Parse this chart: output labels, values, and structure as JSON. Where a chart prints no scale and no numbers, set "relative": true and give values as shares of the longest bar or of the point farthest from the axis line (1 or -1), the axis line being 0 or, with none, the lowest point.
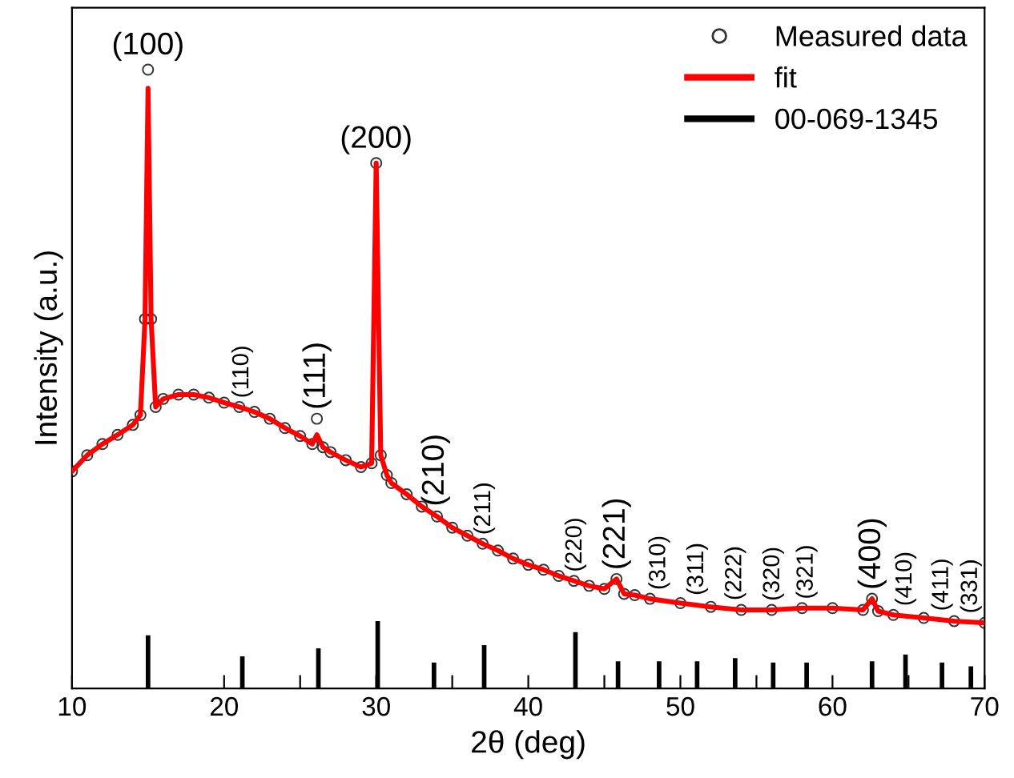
{
  "chart_data": {
    "type": "scatter",
    "relative": true,
    "xlabel": "2θ (deg)",
    "ylabel": "Intensity (a.u.)",
    "xlim": [
      10,
      70
    ],
    "xticks": [
      10,
      {
        "value": 15,
        "label": null
      },
      20,
      {
        "value": 25,
        "label": null
      },
      30,
      {
        "value": 35,
        "label": null
      },
      40,
      {
        "value": 45,
        "label": null
      },
      50,
      {
        "value": 55,
        "label": null
      },
      60,
      {
        "value": 65,
        "label": null
      },
      70
    ],
    "tick_labels": "x",
    "grid": false,
    "legend": "top right",
    "series": [
      {
        "name": "Measured data",
        "marker": "circle",
        "color": "#333333",
        "x": [
          10,
          11,
          12,
          13,
          14,
          14.5,
          14.8,
          15.0,
          15.2,
          15.5,
          16,
          17,
          18,
          19,
          20,
          21,
          22,
          23,
          24,
          25,
          25.8,
          26.1,
          26.5,
          27,
          28,
          29,
          29.7,
          30.0,
          30.3,
          30.7,
          31,
          32,
          33,
          34,
          35,
          36,
          37,
          38,
          39,
          40,
          41,
          42,
          43,
          44,
          45,
          45.8,
          46.3,
          47,
          48,
          50,
          52,
          54,
          56,
          58,
          60,
          62,
          62.6,
          63,
          64,
          66,
          68,
          70
        ],
        "values": [
          0.351,
          0.377,
          0.395,
          0.41,
          0.426,
          0.442,
          0.597,
          1.0,
          0.597,
          0.455,
          0.468,
          0.475,
          0.475,
          0.47,
          0.462,
          0.455,
          0.447,
          0.436,
          0.421,
          0.408,
          0.395,
          0.436,
          0.39,
          0.382,
          0.369,
          0.358,
          0.364,
          0.849,
          0.377,
          0.345,
          0.332,
          0.314,
          0.294,
          0.278,
          0.26,
          0.247,
          0.234,
          0.223,
          0.21,
          0.2,
          0.192,
          0.182,
          0.174,
          0.166,
          0.161,
          0.177,
          0.153,
          0.151,
          0.145,
          0.138,
          0.132,
          0.127,
          0.127,
          0.13,
          0.13,
          0.127,
          0.145,
          0.125,
          0.119,
          0.114,
          0.109,
          0.106
        ]
      },
      {
        "name": "fit",
        "type": "line",
        "color": "#ff0000",
        "x": [
          10,
          11,
          12,
          13,
          14,
          14.5,
          14.8,
          15.0,
          15.2,
          15.5,
          16,
          17,
          18,
          19,
          20,
          21,
          22,
          23,
          24,
          25,
          25.8,
          26.1,
          26.5,
          27,
          28,
          29,
          29.7,
          30.0,
          30.3,
          30.7,
          31,
          32,
          33,
          34,
          35,
          36,
          37,
          38,
          39,
          40,
          41,
          42,
          43,
          44,
          45,
          45.8,
          46.3,
          47,
          48,
          50,
          52,
          54,
          56,
          58,
          60,
          62,
          62.6,
          63,
          64,
          66,
          68,
          70
        ],
        "values": [
          0.351,
          0.377,
          0.395,
          0.41,
          0.426,
          0.442,
          0.597,
          0.97,
          0.597,
          0.455,
          0.468,
          0.475,
          0.475,
          0.47,
          0.462,
          0.455,
          0.447,
          0.436,
          0.421,
          0.408,
          0.395,
          0.41,
          0.39,
          0.382,
          0.369,
          0.358,
          0.364,
          0.849,
          0.377,
          0.345,
          0.332,
          0.314,
          0.294,
          0.278,
          0.26,
          0.247,
          0.234,
          0.223,
          0.21,
          0.2,
          0.192,
          0.182,
          0.174,
          0.166,
          0.161,
          0.177,
          0.153,
          0.151,
          0.145,
          0.138,
          0.132,
          0.127,
          0.127,
          0.13,
          0.13,
          0.127,
          0.145,
          0.125,
          0.119,
          0.114,
          0.109,
          0.106
        ]
      },
      {
        "name": "00-069-1345",
        "type": "bar",
        "color": "#000000",
        "x": [
          15.0,
          21.2,
          26.2,
          30.1,
          33.8,
          37.1,
          43.1,
          45.9,
          48.6,
          51.1,
          53.6,
          56.1,
          58.3,
          62.6,
          64.8,
          67.2,
          69.1
        ],
        "values": [
          0.086,
          0.052,
          0.065,
          0.109,
          0.042,
          0.07,
          0.091,
          0.044,
          0.044,
          0.044,
          0.049,
          0.042,
          0.042,
          0.044,
          0.055,
          0.042,
          0.036
        ]
      }
    ],
    "annotations": [
      {
        "text": "(100)",
        "x": 15.0,
        "y": 1.0
      },
      {
        "text": "(200)",
        "x": 30.0,
        "y": 0.849
      },
      {
        "text": "(110)",
        "x": 21.2,
        "y": 0.455
      },
      {
        "text": "(111)",
        "x": 26.1,
        "y": 0.436
      },
      {
        "text": "(210)",
        "x": 33.9,
        "y": 0.28
      },
      {
        "text": "(211)",
        "x": 37.1,
        "y": 0.234
      },
      {
        "text": "(220)",
        "x": 43.1,
        "y": 0.174
      },
      {
        "text": "(221)",
        "x": 45.8,
        "y": 0.177
      },
      {
        "text": "(310)",
        "x": 48.6,
        "y": 0.145
      },
      {
        "text": "(311)",
        "x": 51.1,
        "y": 0.136
      },
      {
        "text": "(222)",
        "x": 53.6,
        "y": 0.128
      },
      {
        "text": "(320)",
        "x": 56.1,
        "y": 0.127
      },
      {
        "text": "(321)",
        "x": 58.3,
        "y": 0.13
      },
      {
        "text": "(400)",
        "x": 62.6,
        "y": 0.145
      },
      {
        "text": "(410)",
        "x": 64.8,
        "y": 0.119
      },
      {
        "text": "(411)",
        "x": 67.2,
        "y": 0.111
      },
      {
        "text": "(331)",
        "x": 69.1,
        "y": 0.107
      }
    ]
  }
}
